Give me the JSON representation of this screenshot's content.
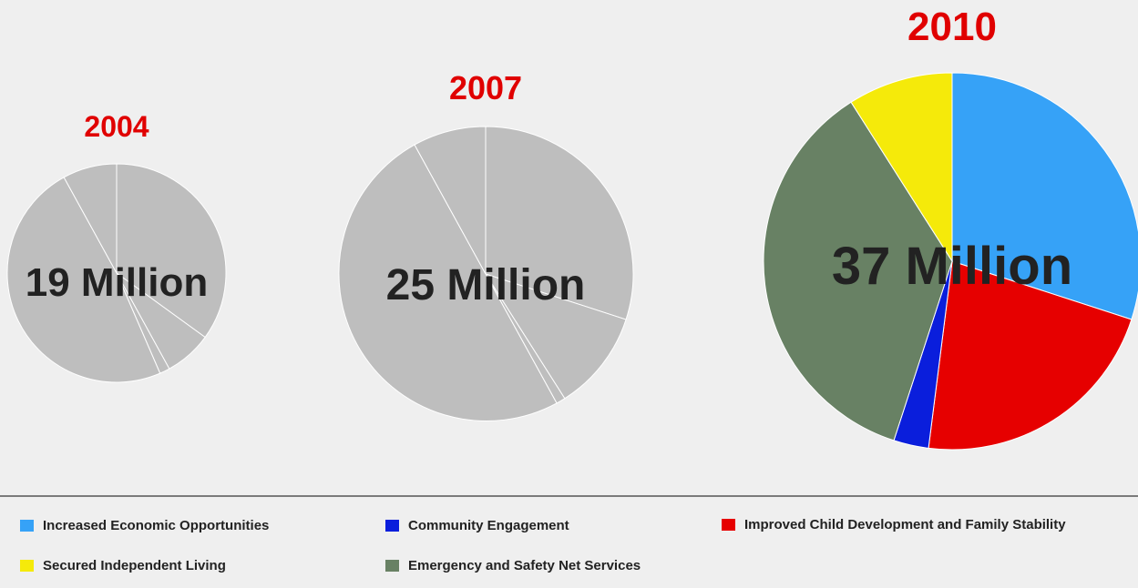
{
  "chart_data": {
    "type": "pie",
    "categories": [
      "Increased Economic Opportunities",
      "Improved Child Development and Family Stability",
      "Community Engagement",
      "Emergency and Safety Net Services",
      "Secured Independent Living"
    ],
    "colors": {
      "Increased Economic Opportunities": "#36a2f7",
      "Community Engagement": "#0a1edc",
      "Improved Child Development and Family Stability": "#e60000",
      "Secured Independent Living": "#f5ea0a",
      "Emergency and Safety Net Services": "#688164"
    },
    "inactive_color": "#bebebe",
    "pies": [
      {
        "year": "2004",
        "total": "19 Million",
        "highlighted": false,
        "values": [
          35,
          7,
          1.5,
          48.5,
          8
        ]
      },
      {
        "year": "2007",
        "total": "25 Million",
        "highlighted": false,
        "values": [
          30,
          11,
          1,
          50,
          8
        ]
      },
      {
        "year": "2010",
        "total": "37 Million",
        "highlighted": true,
        "values": [
          30,
          22,
          3,
          36,
          9
        ]
      }
    ]
  },
  "legend": [
    {
      "label": "Increased Economic Opportunities",
      "color": "#36a2f7"
    },
    {
      "label": "Community Engagement",
      "color": "#0a1edc"
    },
    {
      "label": "Improved Child Development and Family Stability",
      "color": "#e60000"
    },
    {
      "label": "Secured Independent Living",
      "color": "#f5ea0a"
    },
    {
      "label": "Emergency and Safety Net Services",
      "color": "#688164"
    }
  ]
}
